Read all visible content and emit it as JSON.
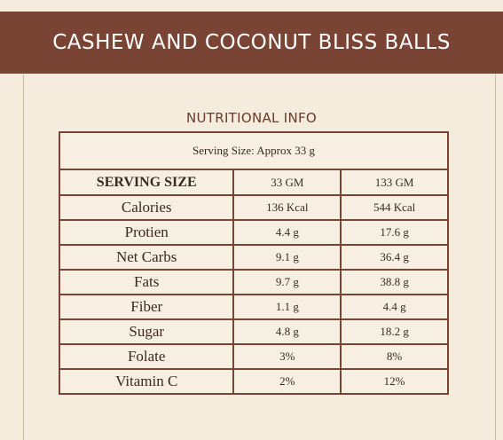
{
  "title": "CASHEW AND COCONUT BLISS BALLS",
  "section_heading": "NUTRITIONAL INFO",
  "serving_size": "Serving Size: Approx 33 g",
  "table": {
    "header": [
      "SERVING SIZE",
      "33 GM",
      "133 GM"
    ],
    "rows": [
      {
        "nutrient": "Calories",
        "small": "136 Kcal",
        "large": "544 Kcal"
      },
      {
        "nutrient": "Protien",
        "small": "4.4 g",
        "large": "17.6 g"
      },
      {
        "nutrient": "Net Carbs",
        "small": "9.1 g",
        "large": "36.4 g"
      },
      {
        "nutrient": "Fats",
        "small": "9.7 g",
        "large": "38.8 g"
      },
      {
        "nutrient": "Fiber",
        "small": "1.1 g",
        "large": "4.4 g"
      },
      {
        "nutrient": "Sugar",
        "small": "4.8 g",
        "large": "18.2 g"
      },
      {
        "nutrient": "Folate",
        "small": "3%",
        "large": "8%"
      },
      {
        "nutrient": "Vitamin C",
        "small": "2%",
        "large": "12%"
      }
    ]
  },
  "colors": {
    "brand": "#7a4434",
    "background": "#f5ecdd",
    "text": "#3a2a22"
  }
}
